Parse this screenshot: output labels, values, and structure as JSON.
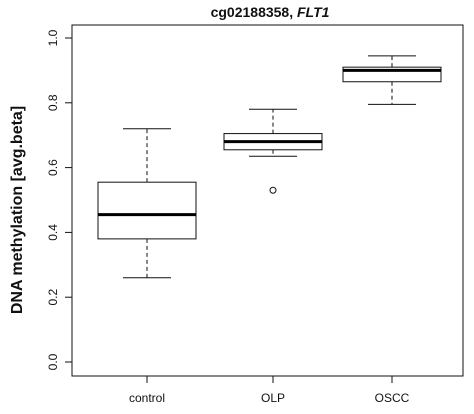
{
  "chart_data": {
    "type": "box",
    "title_main": "cg02188358, ",
    "title_gene": "FLT1",
    "ylabel": "DNA methylation [avg.beta]",
    "xlabel": "",
    "ylim": [
      0.0,
      1.0
    ],
    "y_ticks": [
      "0.0",
      "0.2",
      "0.4",
      "0.6",
      "0.8",
      "1.0"
    ],
    "categories": [
      "control",
      "OLP",
      "OSCC"
    ],
    "boxes": [
      {
        "whisker_low": 0.26,
        "q1": 0.38,
        "median": 0.455,
        "q3": 0.555,
        "whisker_high": 0.72,
        "outliers": []
      },
      {
        "whisker_low": 0.635,
        "q1": 0.655,
        "median": 0.68,
        "q3": 0.705,
        "whisker_high": 0.78,
        "outliers": [
          0.53
        ]
      },
      {
        "whisker_low": 0.795,
        "q1": 0.865,
        "median": 0.9,
        "q3": 0.91,
        "whisker_high": 0.945,
        "outliers": []
      }
    ],
    "grid": false,
    "legend": "none"
  }
}
